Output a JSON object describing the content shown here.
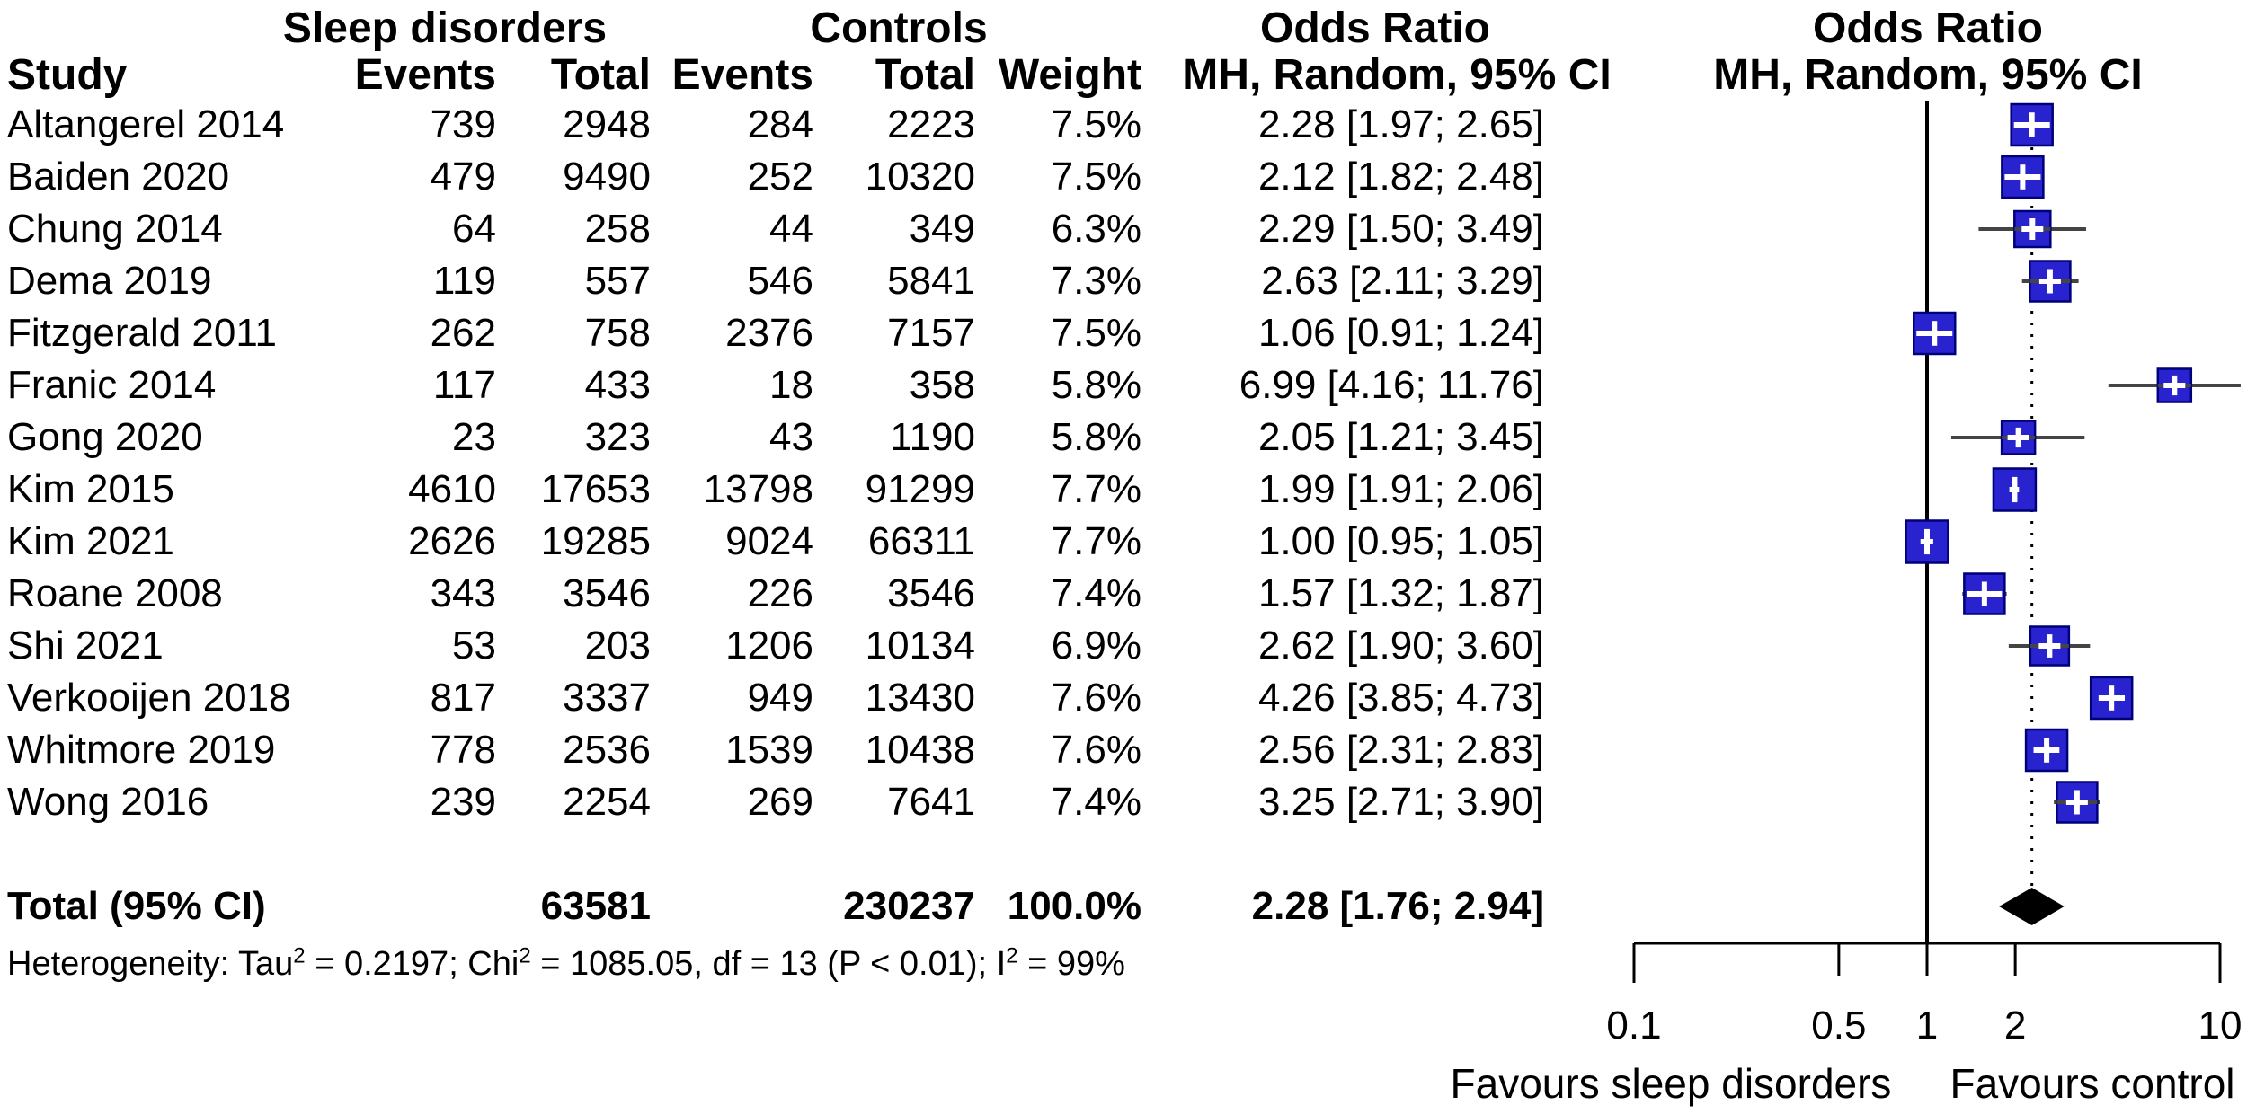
{
  "headers": {
    "group_sleep": "Sleep disorders",
    "group_controls": "Controls",
    "group_or_text": "Odds Ratio",
    "group_or_plot": "Odds Ratio",
    "study": "Study",
    "events1": "Events",
    "total1": "Total",
    "events2": "Events",
    "total2": "Total",
    "weight": "Weight",
    "ci_text": "MH, Random, 95% CI",
    "ci_plot": "MH, Random, 95% CI"
  },
  "chart_data": {
    "type": "forest",
    "x_scale": "log10",
    "xlim": [
      0.1,
      10
    ],
    "x_ticks": [
      "0.1",
      "0.5",
      "1",
      "2",
      "10"
    ],
    "x_tick_values": [
      0.1,
      0.5,
      1,
      2,
      10
    ],
    "ref_line": 1,
    "pooled_line": 2.28,
    "favours_left": "Favours sleep disorders",
    "favours_right": "Favours control",
    "studies": [
      {
        "name": "Altangerel 2014",
        "events1": "739",
        "total1": "2948",
        "events2": "284",
        "total2": "2223",
        "weight": "7.5%",
        "weight_pct": 7.5,
        "or": 2.28,
        "low": 1.97,
        "high": 2.65,
        "or_label": "2.28 [1.97; 2.65]"
      },
      {
        "name": "Baiden 2020",
        "events1": "479",
        "total1": "9490",
        "events2": "252",
        "total2": "10320",
        "weight": "7.5%",
        "weight_pct": 7.5,
        "or": 2.12,
        "low": 1.82,
        "high": 2.48,
        "or_label": "2.12 [1.82; 2.48]"
      },
      {
        "name": "Chung 2014",
        "events1": "64",
        "total1": "258",
        "events2": "44",
        "total2": "349",
        "weight": "6.3%",
        "weight_pct": 6.3,
        "or": 2.29,
        "low": 1.5,
        "high": 3.49,
        "or_label": "2.29 [1.50; 3.49]"
      },
      {
        "name": "Dema 2019",
        "events1": "119",
        "total1": "557",
        "events2": "546",
        "total2": "5841",
        "weight": "7.3%",
        "weight_pct": 7.3,
        "or": 2.63,
        "low": 2.11,
        "high": 3.29,
        "or_label": "2.63 [2.11; 3.29]"
      },
      {
        "name": "Fitzgerald 2011",
        "events1": "262",
        "total1": "758",
        "events2": "2376",
        "total2": "7157",
        "weight": "7.5%",
        "weight_pct": 7.5,
        "or": 1.06,
        "low": 0.91,
        "high": 1.24,
        "or_label": "1.06 [0.91; 1.24]"
      },
      {
        "name": "Franic 2014",
        "events1": "117",
        "total1": "433",
        "events2": "18",
        "total2": "358",
        "weight": "5.8%",
        "weight_pct": 5.8,
        "or": 6.99,
        "low": 4.16,
        "high": 11.76,
        "or_label": "6.99 [4.16; 11.76]"
      },
      {
        "name": "Gong 2020",
        "events1": "23",
        "total1": "323",
        "events2": "43",
        "total2": "1190",
        "weight": "5.8%",
        "weight_pct": 5.8,
        "or": 2.05,
        "low": 1.21,
        "high": 3.45,
        "or_label": "2.05 [1.21; 3.45]"
      },
      {
        "name": "Kim 2015",
        "events1": "4610",
        "total1": "17653",
        "events2": "13798",
        "total2": "91299",
        "weight": "7.7%",
        "weight_pct": 7.7,
        "or": 1.99,
        "low": 1.91,
        "high": 2.06,
        "or_label": "1.99 [1.91; 2.06]"
      },
      {
        "name": "Kim 2021",
        "events1": "2626",
        "total1": "19285",
        "events2": "9024",
        "total2": "66311",
        "weight": "7.7%",
        "weight_pct": 7.7,
        "or": 1.0,
        "low": 0.95,
        "high": 1.05,
        "or_label": "1.00 [0.95; 1.05]"
      },
      {
        "name": "Roane 2008",
        "events1": "343",
        "total1": "3546",
        "events2": "226",
        "total2": "3546",
        "weight": "7.4%",
        "weight_pct": 7.4,
        "or": 1.57,
        "low": 1.32,
        "high": 1.87,
        "or_label": "1.57 [1.32; 1.87]"
      },
      {
        "name": "Shi 2021",
        "events1": "53",
        "total1": "203",
        "events2": "1206",
        "total2": "10134",
        "weight": "6.9%",
        "weight_pct": 6.9,
        "or": 2.62,
        "low": 1.9,
        "high": 3.6,
        "or_label": "2.62 [1.90; 3.60]"
      },
      {
        "name": "Verkooijen 2018",
        "events1": "817",
        "total1": "3337",
        "events2": "949",
        "total2": "13430",
        "weight": "7.6%",
        "weight_pct": 7.6,
        "or": 4.26,
        "low": 3.85,
        "high": 4.73,
        "or_label": "4.26 [3.85; 4.73]"
      },
      {
        "name": "Whitmore 2019",
        "events1": "778",
        "total1": "2536",
        "events2": "1539",
        "total2": "10438",
        "weight": "7.6%",
        "weight_pct": 7.6,
        "or": 2.56,
        "low": 2.31,
        "high": 2.83,
        "or_label": "2.56 [2.31; 2.83]"
      },
      {
        "name": "Wong 2016",
        "events1": "239",
        "total1": "2254",
        "events2": "269",
        "total2": "7641",
        "weight": "7.4%",
        "weight_pct": 7.4,
        "or": 3.25,
        "low": 2.71,
        "high": 3.9,
        "or_label": "3.25 [2.71; 3.90]"
      }
    ],
    "total": {
      "label": "Total (95% CI)",
      "total1": "63581",
      "total2": "230237",
      "weight": "100.0%",
      "or": 2.28,
      "low": 1.76,
      "high": 2.94,
      "or_label": "2.28 [1.76; 2.94]"
    }
  },
  "heterogeneity": {
    "seg1": "Heterogeneity: Tau",
    "sup1": "2",
    "seg2": " = 0.2197; Chi",
    "sup2": "2",
    "seg3": " = 1085.05, df = 13 (P < 0.01); I",
    "sup3": "2",
    "seg4": " = 99%"
  },
  "colors": {
    "square_fill": "#2823cf",
    "square_border": "#00007a",
    "whisker": "#444444",
    "diamond": "#000000",
    "axis": "#000000",
    "marker_cross": "#ffffff"
  }
}
